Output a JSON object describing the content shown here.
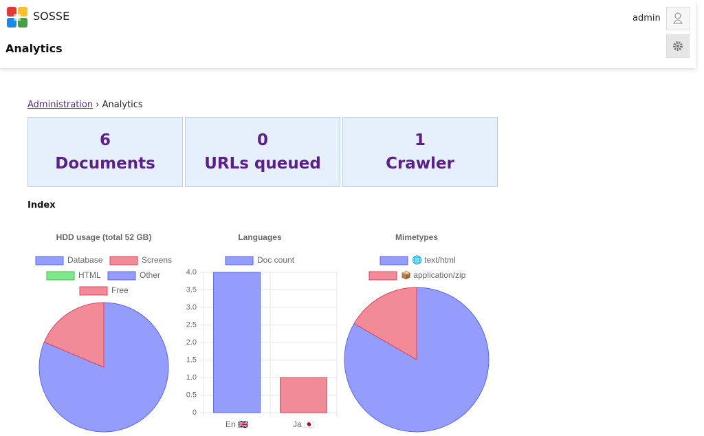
{
  "header": {
    "brand": "SOSSE",
    "title": "Analytics",
    "user": "admin"
  },
  "breadcrumb": {
    "parent": "Administration",
    "separator": "›",
    "current": "Analytics"
  },
  "stats": [
    {
      "value": 6,
      "label": "Documents"
    },
    {
      "value": 0,
      "label": "URLs queued"
    },
    {
      "value": 1,
      "label": "Crawler"
    }
  ],
  "section": "Index",
  "charts": [
    {
      "type": "pie",
      "title": "HDD usage (total 52 GB)",
      "categories": [
        "Database",
        "Screens",
        "HTML",
        "Other",
        "Free"
      ],
      "values": [
        0,
        0,
        0,
        42.3,
        9.7
      ],
      "colors": [
        "#949cfc",
        "#f28b98",
        "#7ee88a",
        "#949cfc",
        "#f28b98"
      ]
    },
    {
      "type": "bar",
      "title": "Languages",
      "categories": [
        "En 🇬🇧",
        "Ja 🇯🇵"
      ],
      "series": [
        {
          "name": "Doc count",
          "values": [
            4,
            1
          ],
          "colors": [
            "#949cfc",
            "#f28b98"
          ]
        }
      ],
      "ylim": [
        0,
        4
      ],
      "yticks": [
        0,
        0.5,
        {
          "value": 1,
          "label": "1.0"
        },
        1.5,
        {
          "value": 2,
          "label": "2.0"
        },
        2.5,
        {
          "value": 3,
          "label": "3.0"
        },
        3.5,
        {
          "value": 4,
          "label": "4.0"
        }
      ],
      "grid": true
    },
    {
      "type": "pie",
      "title": "Mimetypes",
      "categories": [
        "🌐 text/html",
        "📦 application/zip"
      ],
      "values": [
        5,
        1
      ],
      "colors": [
        "#949cfc",
        "#f28b98"
      ]
    }
  ]
}
